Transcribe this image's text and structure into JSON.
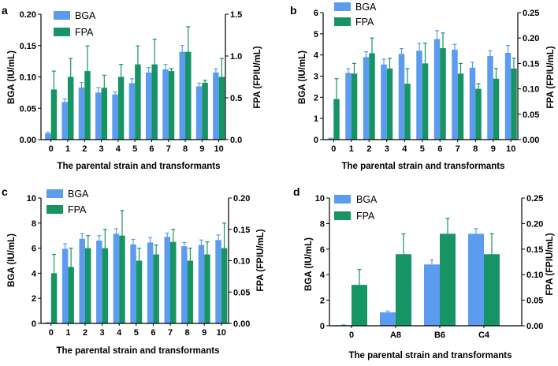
{
  "colors": {
    "bga": "#5b9cf0",
    "fpa": "#179464",
    "axis": "#000000"
  },
  "chart_data": [
    {
      "panel": "a",
      "type": "bar",
      "legend": [
        "BGA",
        "FPA"
      ],
      "xlabel": "The parental strain and transformants",
      "ylabel_left": "BGA (IU/mL)",
      "ylabel_right": "FPA (FPIU/mL)",
      "left_ticks": [
        "0.00",
        "0.05",
        "0.10",
        "0.15",
        "0.20"
      ],
      "right_ticks": [
        "0.0",
        "0.5",
        "1.0",
        "1.5"
      ],
      "ylim_left": [
        0,
        0.2
      ],
      "ylim_right": [
        0,
        1.5
      ],
      "categories": [
        "0",
        "1",
        "2",
        "3",
        "4",
        "5",
        "6",
        "7",
        "8",
        "9",
        "10"
      ],
      "series": [
        {
          "name": "BGA",
          "axis": "left",
          "values": [
            0.01,
            0.06,
            0.083,
            0.075,
            0.072,
            0.09,
            0.107,
            0.112,
            0.14,
            0.085,
            0.107
          ],
          "errors": [
            0.002,
            0.005,
            0.008,
            0.008,
            0.004,
            0.007,
            0.008,
            0.008,
            0.01,
            0.005,
            0.006
          ]
        },
        {
          "name": "FPA",
          "axis": "right",
          "values": [
            0.6,
            0.75,
            0.82,
            0.62,
            0.75,
            0.9,
            0.9,
            0.82,
            1.05,
            0.68,
            0.75
          ],
          "errors": [
            0.22,
            0.22,
            0.3,
            0.15,
            0.15,
            0.22,
            0.3,
            0.03,
            0.3,
            0.03,
            0.22
          ]
        }
      ]
    },
    {
      "panel": "b",
      "type": "bar",
      "legend": [
        "BGA",
        "FPA"
      ],
      "xlabel": "The parental strain and transformants",
      "ylabel_left": "BGA (IU/mL)",
      "ylabel_right": "FPA (FPIU/mL)",
      "left_ticks": [
        "0",
        "1",
        "2",
        "3",
        "4",
        "5",
        "6"
      ],
      "right_ticks": [
        "0.00",
        "0.05",
        "0.10",
        "0.15",
        "0.20",
        "0.25"
      ],
      "ylim_left": [
        0,
        6
      ],
      "ylim_right": [
        0,
        0.25
      ],
      "categories": [
        "0",
        "1",
        "2",
        "3",
        "4",
        "5",
        "6",
        "7",
        "8",
        "9",
        "10"
      ],
      "series": [
        {
          "name": "BGA",
          "axis": "left",
          "values": [
            0.05,
            3.15,
            3.9,
            3.55,
            4.05,
            4.2,
            4.75,
            4.25,
            3.4,
            3.95,
            4.1
          ],
          "errors": [
            0.02,
            0.2,
            0.25,
            0.25,
            0.25,
            0.35,
            0.4,
            0.25,
            0.25,
            0.25,
            0.35
          ]
        },
        {
          "name": "FPA",
          "axis": "right",
          "values": [
            0.08,
            0.13,
            0.17,
            0.14,
            0.11,
            0.15,
            0.18,
            0.13,
            0.1,
            0.12,
            0.14
          ],
          "errors": [
            0.04,
            0.02,
            0.03,
            0.02,
            0.03,
            0.04,
            0.03,
            0.02,
            0.01,
            0.02,
            0.02
          ]
        }
      ]
    },
    {
      "panel": "c",
      "type": "bar",
      "legend": [
        "BGA",
        "FPA"
      ],
      "xlabel": "The parental strain and transformants",
      "ylabel_left": "BGA (IU/mL)",
      "ylabel_right": "FPA (FPIU/mL)",
      "left_ticks": [
        "0",
        "2",
        "4",
        "6",
        "8",
        "10"
      ],
      "right_ticks": [
        "0.00",
        "0.05",
        "0.10",
        "0.15",
        "0.20"
      ],
      "ylim_left": [
        0,
        10
      ],
      "ylim_right": [
        0,
        0.2
      ],
      "categories": [
        "0",
        "1",
        "2",
        "3",
        "4",
        "5",
        "6",
        "7",
        "8",
        "9",
        "10"
      ],
      "series": [
        {
          "name": "BGA",
          "axis": "left",
          "values": [
            0.05,
            5.95,
            6.75,
            6.6,
            7.15,
            6.3,
            6.45,
            6.9,
            6.15,
            6.25,
            6.65
          ],
          "errors": [
            0.02,
            0.4,
            0.4,
            0.4,
            0.4,
            0.4,
            0.4,
            0.3,
            0.3,
            0.4,
            0.4
          ]
        },
        {
          "name": "FPA",
          "axis": "right",
          "values": [
            0.08,
            0.09,
            0.12,
            0.12,
            0.14,
            0.1,
            0.11,
            0.13,
            0.1,
            0.11,
            0.12
          ],
          "errors": [
            0.03,
            0.03,
            0.02,
            0.03,
            0.04,
            0.02,
            0.015,
            0.02,
            0.02,
            0.02,
            0.04
          ]
        }
      ]
    },
    {
      "panel": "d",
      "type": "bar",
      "legend": [
        "BGA",
        "FPA"
      ],
      "xlabel": "The parental strain and transformants",
      "ylabel_left": "BGA (IU/mL)",
      "ylabel_right": "FPA (FPIU/mL)",
      "left_ticks": [
        "0",
        "2",
        "4",
        "6",
        "8",
        "10"
      ],
      "right_ticks": [
        "0.00",
        "0.05",
        "0.10",
        "0.15",
        "0.20",
        "0.25"
      ],
      "ylim_left": [
        0,
        10
      ],
      "ylim_right": [
        0,
        0.25
      ],
      "categories": [
        "0",
        "A8",
        "B6",
        "C4"
      ],
      "series": [
        {
          "name": "BGA",
          "axis": "left",
          "values": [
            0.05,
            1.05,
            4.8,
            7.2
          ],
          "errors": [
            0.02,
            0.1,
            0.35,
            0.4
          ]
        },
        {
          "name": "FPA",
          "axis": "right",
          "values": [
            0.08,
            0.14,
            0.18,
            0.14
          ],
          "errors": [
            0.03,
            0.04,
            0.03,
            0.04
          ]
        }
      ]
    }
  ]
}
